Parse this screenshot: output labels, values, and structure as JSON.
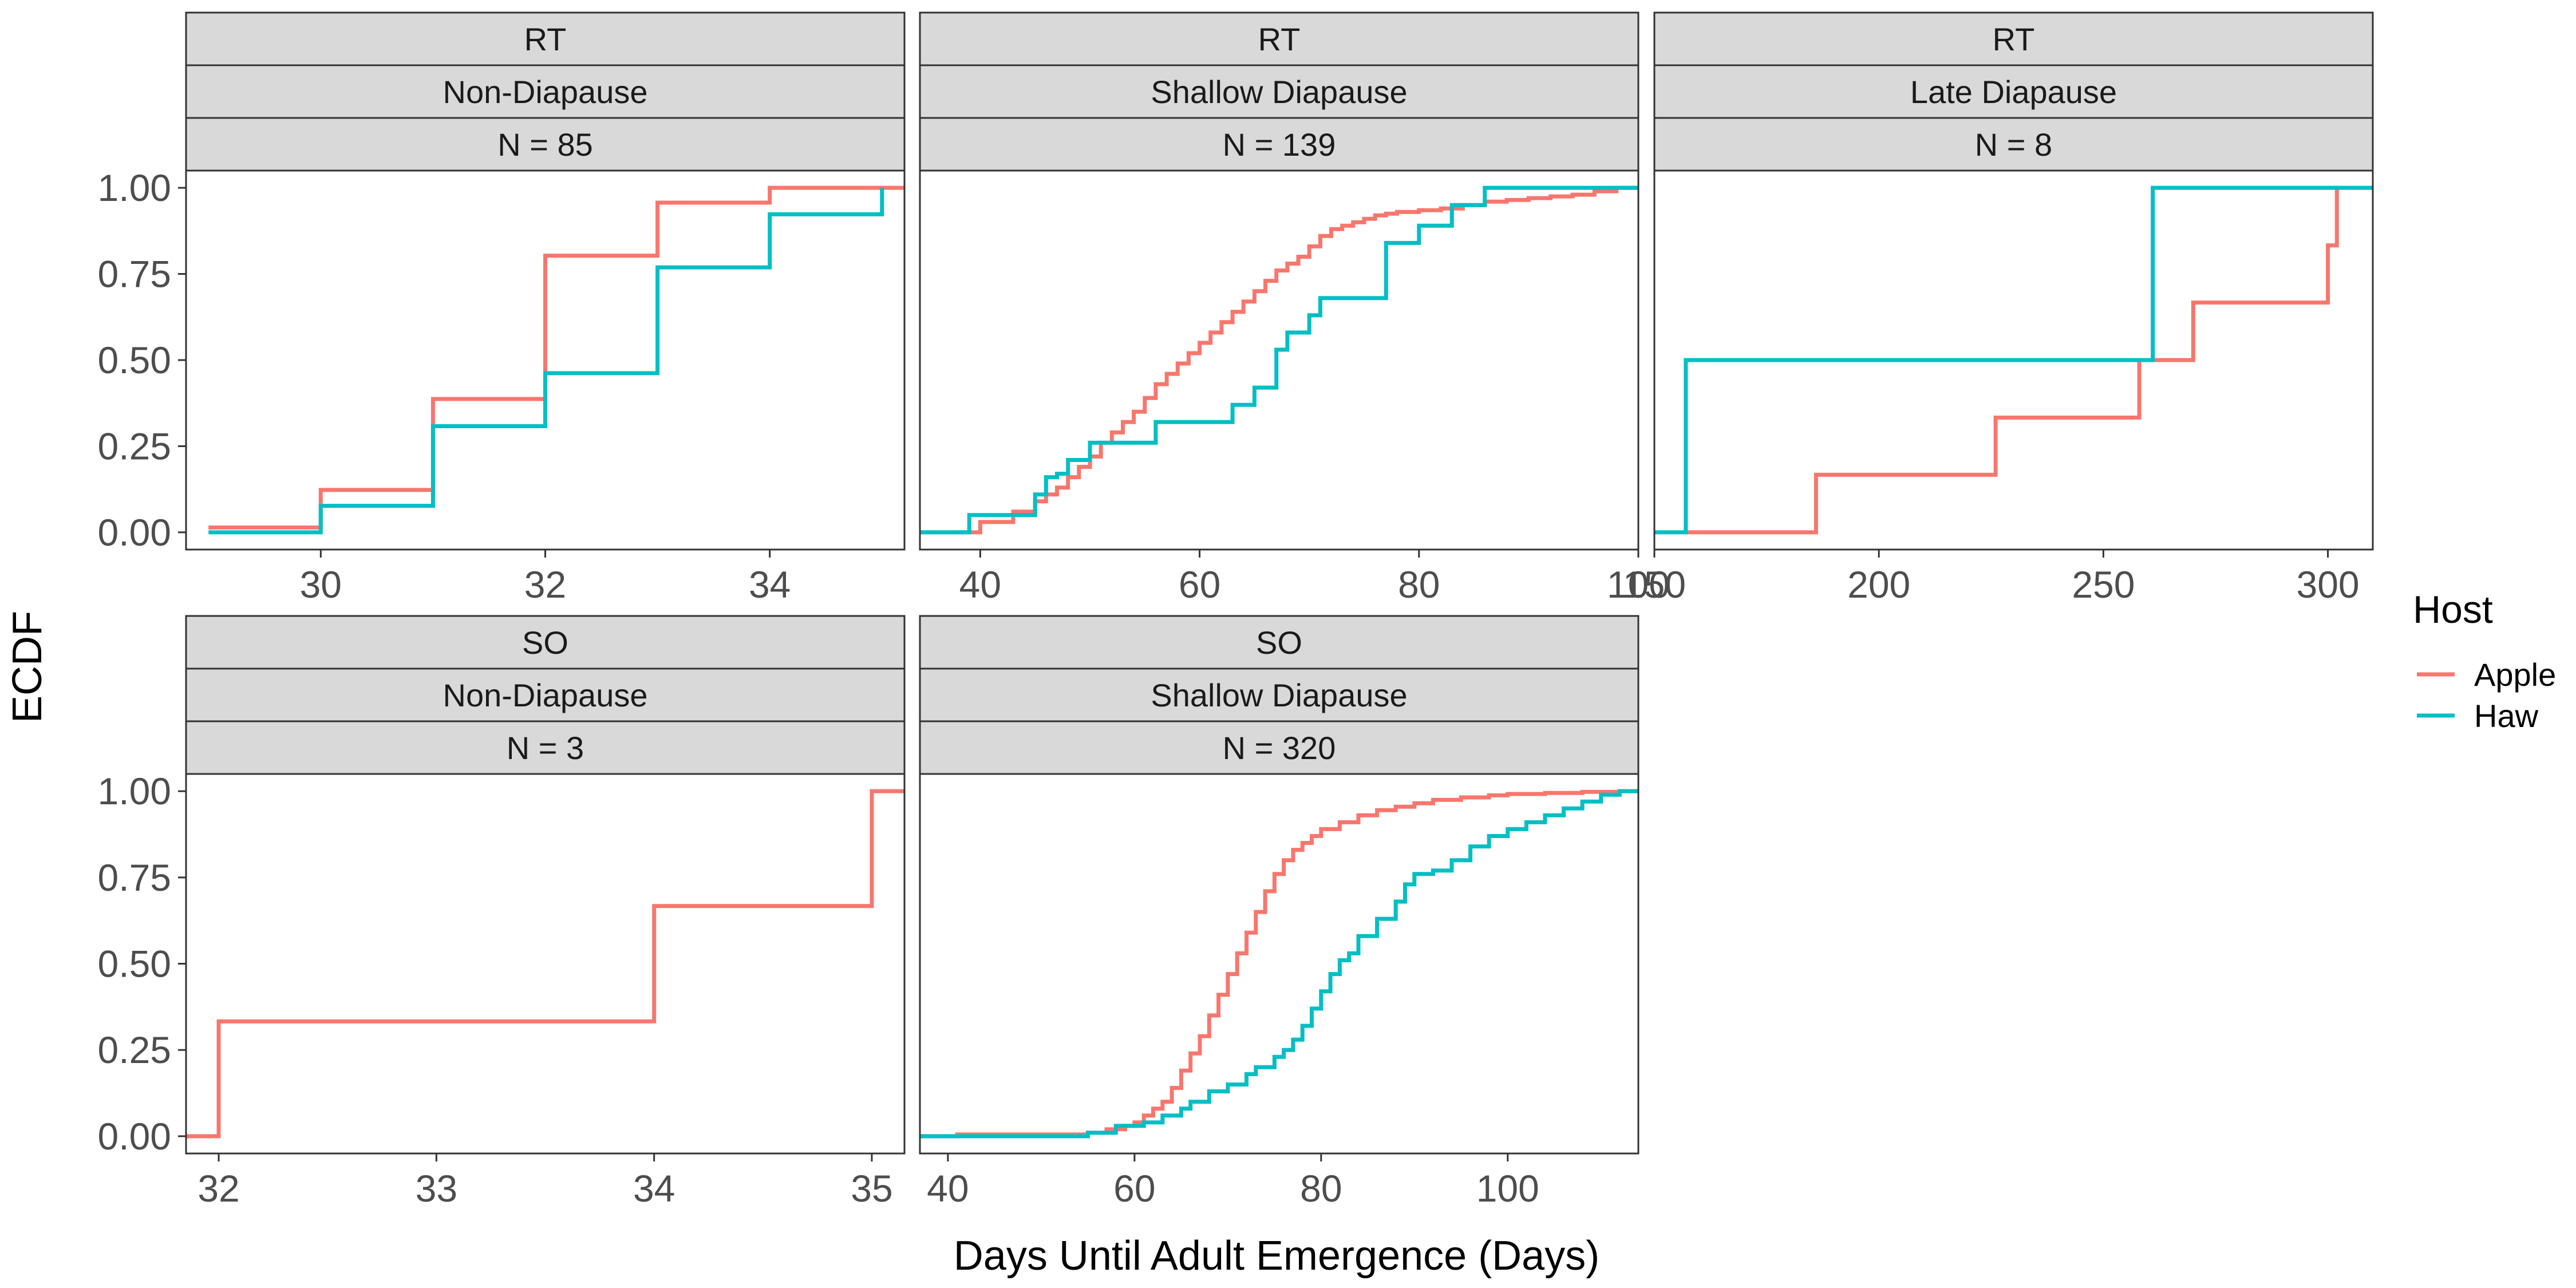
{
  "chart_data": {
    "type": "line",
    "step": true,
    "ylabel": "ECDF",
    "xlabel": "Days Until Adult Emergence (Days)",
    "yticks": [
      "0.00",
      "0.25",
      "0.50",
      "0.75",
      "1.00"
    ],
    "legend": {
      "title": "Host",
      "position": "right",
      "items": [
        {
          "label": "Apple",
          "color": "#F8766D"
        },
        {
          "label": "Haw",
          "color": "#00BFC4"
        }
      ]
    },
    "panels": [
      {
        "strips": [
          "RT",
          "Non-Diapause",
          "N = 85"
        ],
        "xlim": [
          28.8,
          35.2
        ],
        "xticks": [
          30,
          32,
          34
        ],
        "series": [
          {
            "name": "Apple",
            "color": "#F8766D",
            "x": [
              29,
              30,
              31,
              32,
              33,
              34,
              35.2
            ],
            "y": [
              0.014,
              0.123,
              0.387,
              0.803,
              0.957,
              1.0,
              1.0
            ]
          },
          {
            "name": "Haw",
            "color": "#00BFC4",
            "x": [
              29,
              30,
              31,
              32,
              33,
              34,
              35
            ],
            "y": [
              0.0,
              0.077,
              0.308,
              0.462,
              0.769,
              0.923,
              1.0
            ]
          }
        ]
      },
      {
        "strips": [
          "RT",
          "Shallow Diapause",
          "N = 139"
        ],
        "xlim": [
          34.5,
          100
        ],
        "xticks": [
          40,
          60,
          80,
          100
        ],
        "series": [
          {
            "name": "Apple",
            "color": "#F8766D",
            "x": [
              34.5,
              40,
              43,
              45,
              46,
              47,
              48,
              49,
              50,
              51,
              52,
              53,
              54,
              55,
              56,
              57,
              58,
              59,
              60,
              61,
              62,
              63,
              64,
              65,
              66,
              67,
              68,
              69,
              70,
              71,
              72,
              73,
              74,
              75,
              76,
              77,
              78,
              80,
              82,
              84,
              86,
              88,
              90,
              92,
              94,
              96,
              98,
              100
            ],
            "y": [
              0.0,
              0.03,
              0.06,
              0.09,
              0.11,
              0.13,
              0.16,
              0.19,
              0.22,
              0.26,
              0.29,
              0.32,
              0.35,
              0.39,
              0.43,
              0.46,
              0.49,
              0.52,
              0.55,
              0.58,
              0.61,
              0.64,
              0.67,
              0.7,
              0.73,
              0.76,
              0.78,
              0.8,
              0.83,
              0.86,
              0.88,
              0.89,
              0.9,
              0.91,
              0.92,
              0.925,
              0.93,
              0.935,
              0.94,
              0.95,
              0.96,
              0.965,
              0.97,
              0.975,
              0.98,
              0.99,
              1.0,
              1.0
            ]
          },
          {
            "name": "Haw",
            "color": "#00BFC4",
            "x": [
              34.5,
              39,
              45,
              46,
              47,
              48,
              50,
              52,
              56,
              63,
              65,
              67,
              68,
              70,
              71,
              77,
              80,
              83,
              86,
              100
            ],
            "y": [
              0.0,
              0.05,
              0.11,
              0.16,
              0.17,
              0.21,
              0.26,
              0.26,
              0.32,
              0.37,
              0.42,
              0.53,
              0.58,
              0.63,
              0.68,
              0.84,
              0.89,
              0.95,
              1.0,
              1.0
            ]
          }
        ]
      },
      {
        "strips": [
          "RT",
          "Late Diapause",
          "N = 8"
        ],
        "xlim": [
          150,
          310
        ],
        "xticks": [
          150,
          200,
          250,
          300
        ],
        "series": [
          {
            "name": "Apple",
            "color": "#F8766D",
            "x": [
              157,
              186,
              226,
              258,
              270,
              300,
              302,
              303
            ],
            "y": [
              0.0,
              0.167,
              0.333,
              0.5,
              0.667,
              0.833,
              1.0,
              1.0
            ]
          },
          {
            "name": "Haw",
            "color": "#00BFC4",
            "x": [
              150,
              157,
              261,
              310
            ],
            "y": [
              0.0,
              0.5,
              1.0,
              1.0
            ]
          }
        ]
      },
      {
        "strips": [
          "SO",
          "Non-Diapause",
          "N = 3"
        ],
        "xlim": [
          31.85,
          35.15
        ],
        "xticks": [
          32,
          33,
          34,
          35
        ],
        "series": [
          {
            "name": "Apple",
            "color": "#F8766D",
            "x": [
              31.85,
              32,
              34,
              35,
              35.15
            ],
            "y": [
              0.0,
              0.333,
              0.667,
              1.0,
              1.0
            ]
          }
        ]
      },
      {
        "strips": [
          "SO",
          "Shallow Diapause",
          "N = 320"
        ],
        "xlim": [
          37,
          114
        ],
        "xticks": [
          40,
          60,
          80,
          100
        ],
        "series": [
          {
            "name": "Apple",
            "color": "#F8766D",
            "x": [
              37,
              41,
              55,
              57,
              59,
              60,
              61,
              62,
              63,
              64,
              65,
              66,
              67,
              68,
              69,
              70,
              71,
              72,
              73,
              74,
              75,
              76,
              77,
              78,
              79,
              80,
              82,
              84,
              86,
              88,
              90,
              92,
              95,
              98,
              100,
              104,
              108,
              112,
              114
            ],
            "y": [
              0.0,
              0.005,
              0.01,
              0.02,
              0.03,
              0.04,
              0.06,
              0.08,
              0.1,
              0.14,
              0.19,
              0.24,
              0.29,
              0.35,
              0.41,
              0.47,
              0.53,
              0.59,
              0.65,
              0.71,
              0.76,
              0.8,
              0.83,
              0.85,
              0.87,
              0.89,
              0.91,
              0.93,
              0.945,
              0.955,
              0.965,
              0.975,
              0.982,
              0.988,
              0.992,
              0.995,
              0.998,
              1.0,
              1.0
            ]
          },
          {
            "name": "Haw",
            "color": "#00BFC4",
            "x": [
              37,
              55,
              58,
              61,
              63,
              65,
              66,
              68,
              70,
              72,
              73,
              75,
              76,
              77,
              78,
              79,
              80,
              81,
              82,
              83,
              84,
              86,
              88,
              89,
              90,
              92,
              94,
              96,
              98,
              100,
              102,
              104,
              106,
              108,
              110,
              112,
              114
            ],
            "y": [
              0.0,
              0.01,
              0.03,
              0.04,
              0.06,
              0.08,
              0.1,
              0.13,
              0.15,
              0.18,
              0.2,
              0.23,
              0.25,
              0.28,
              0.32,
              0.37,
              0.42,
              0.47,
              0.51,
              0.53,
              0.58,
              0.63,
              0.68,
              0.73,
              0.76,
              0.77,
              0.8,
              0.84,
              0.87,
              0.89,
              0.91,
              0.93,
              0.95,
              0.97,
              0.99,
              1.0,
              1.0
            ]
          }
        ]
      }
    ]
  }
}
